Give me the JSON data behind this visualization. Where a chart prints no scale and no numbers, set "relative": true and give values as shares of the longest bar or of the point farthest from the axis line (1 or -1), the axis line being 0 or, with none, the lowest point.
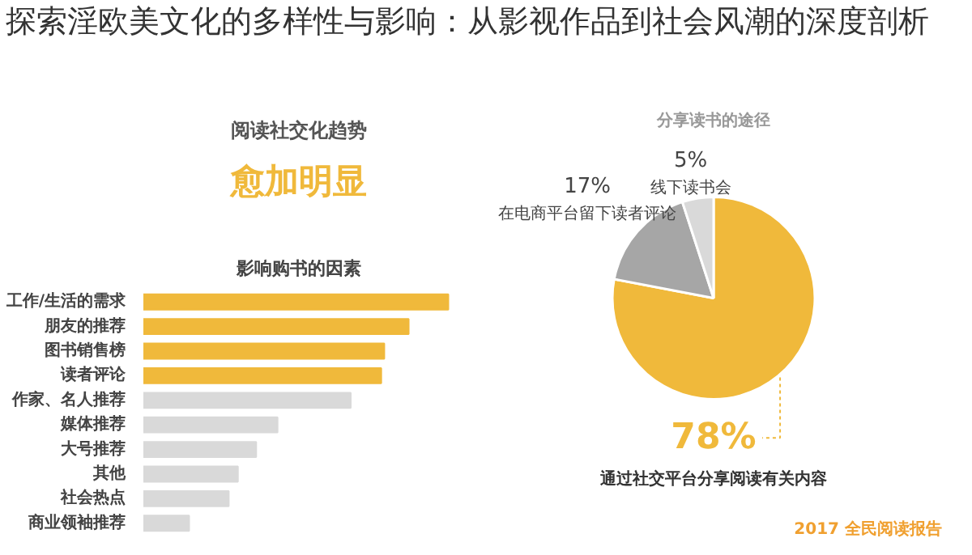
{
  "chart_data": [
    {
      "type": "other",
      "title": "探索淫欧美文化的多样性与影响：从影视作品到社会风潮的深度剖析",
      "annotations": [
        "阅读社交化趋势",
        "愈加明显",
        "2017 全民阅读报告"
      ]
    },
    {
      "type": "bar",
      "orientation": "horizontal",
      "relative": true,
      "title": "影响购书的因素",
      "categories": [
        "工作/生活的需求",
        "朋友的推荐",
        "图书销售榜",
        "读者评论",
        "作家、名人推荐",
        "媒体推荐",
        "大号推荐",
        "其他",
        "社会热点",
        "商业领袖推荐"
      ],
      "values": [
        1,
        0.87,
        0.79,
        0.78,
        0.68,
        0.44,
        0.37,
        0.31,
        0.28,
        0.15
      ],
      "colors": [
        "#f0b93b",
        "#f0b93b",
        "#f0b93b",
        "#f0b93b",
        "#d9d9d9",
        "#d9d9d9",
        "#d9d9d9",
        "#d9d9d9",
        "#d9d9d9",
        "#d9d9d9"
      ]
    },
    {
      "type": "pie",
      "title": "分享读书的途径",
      "categories": [
        "通过社交平台分享阅读有关内容",
        "在电商平台留下读者评论",
        "线下读书会"
      ],
      "values": [
        78,
        17,
        5
      ],
      "value_labels": [
        "78%",
        "17%",
        "5%"
      ],
      "colors": [
        "#f0b93b",
        "#a6a6a6",
        "#d9d9d9"
      ]
    }
  ]
}
